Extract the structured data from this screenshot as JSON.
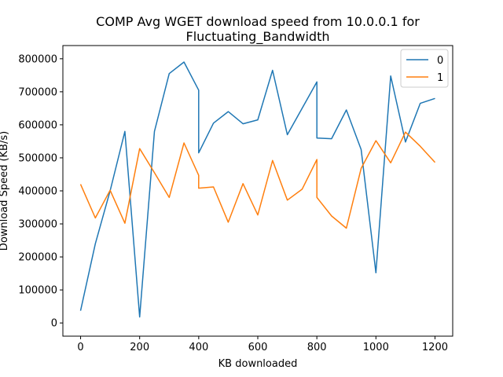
{
  "chart_data": {
    "type": "line",
    "title_line1": "COMP Avg WGET download speed from 10.0.0.1 for",
    "title_line2": "Fluctuating_Bandwidth",
    "xlabel": "KB downloaded",
    "ylabel": "Download Speed (KB/s)",
    "xlim": [
      -60,
      1260
    ],
    "ylim": [
      -40000,
      840000
    ],
    "xticks": [
      0,
      200,
      400,
      600,
      800,
      1000,
      1200
    ],
    "yticks": [
      0,
      100000,
      200000,
      300000,
      400000,
      500000,
      600000,
      700000,
      800000
    ],
    "legend_position": "top-right",
    "grid": false,
    "series": [
      {
        "name": "0",
        "color": "#1f77b4",
        "points": [
          [
            0,
            37000
          ],
          [
            50,
            240000
          ],
          [
            100,
            400000
          ],
          [
            150,
            580000
          ],
          [
            200,
            18000
          ],
          [
            250,
            580000
          ],
          [
            300,
            755000
          ],
          [
            350,
            790000
          ],
          [
            400,
            705000
          ],
          [
            400,
            515000
          ],
          [
            450,
            605000
          ],
          [
            500,
            640000
          ],
          [
            550,
            603000
          ],
          [
            600,
            615000
          ],
          [
            650,
            765000
          ],
          [
            700,
            570000
          ],
          [
            750,
            650000
          ],
          [
            800,
            730000
          ],
          [
            800,
            560000
          ],
          [
            850,
            558000
          ],
          [
            900,
            645000
          ],
          [
            950,
            525000
          ],
          [
            1000,
            152000
          ],
          [
            1050,
            748000
          ],
          [
            1100,
            548000
          ],
          [
            1150,
            665000
          ],
          [
            1200,
            680000
          ]
        ]
      },
      {
        "name": "1",
        "color": "#ff7f0e",
        "points": [
          [
            0,
            420000
          ],
          [
            50,
            318000
          ],
          [
            100,
            402000
          ],
          [
            150,
            302000
          ],
          [
            200,
            528000
          ],
          [
            250,
            455000
          ],
          [
            300,
            380000
          ],
          [
            350,
            545000
          ],
          [
            400,
            447000
          ],
          [
            400,
            408000
          ],
          [
            450,
            412000
          ],
          [
            500,
            305000
          ],
          [
            550,
            422000
          ],
          [
            600,
            327000
          ],
          [
            650,
            492000
          ],
          [
            700,
            372000
          ],
          [
            750,
            405000
          ],
          [
            800,
            495000
          ],
          [
            800,
            380000
          ],
          [
            850,
            324000
          ],
          [
            900,
            287000
          ],
          [
            950,
            468000
          ],
          [
            1000,
            552000
          ],
          [
            1050,
            485000
          ],
          [
            1100,
            578000
          ],
          [
            1150,
            535000
          ],
          [
            1200,
            486000
          ]
        ]
      }
    ]
  }
}
